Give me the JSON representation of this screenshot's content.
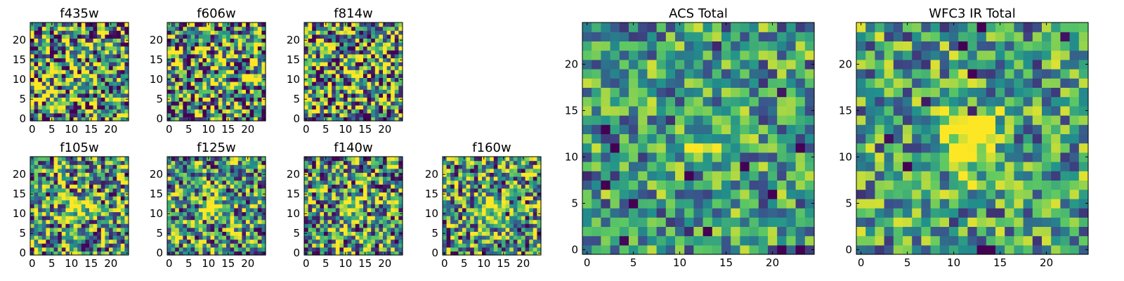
{
  "chart_data": [
    {
      "type": "heatmap",
      "title": "f435w",
      "grid": 25,
      "seed": 11,
      "xticks": [
        0,
        5,
        10,
        15,
        20
      ],
      "yticks": [
        0,
        5,
        10,
        15,
        20
      ],
      "peak": 0.05,
      "contrast": 1.6
    },
    {
      "type": "heatmap",
      "title": "f606w",
      "grid": 25,
      "seed": 23,
      "xticks": [
        0,
        5,
        10,
        15,
        20
      ],
      "yticks": [
        0,
        5,
        10,
        15,
        20
      ],
      "peak": 0.05,
      "contrast": 1.6
    },
    {
      "type": "heatmap",
      "title": "f814w",
      "grid": 25,
      "seed": 37,
      "xticks": [
        0,
        5,
        10,
        15,
        20
      ],
      "yticks": [
        0,
        5,
        10,
        15,
        20
      ],
      "peak": 0.25,
      "contrast": 1.5
    },
    {
      "type": "heatmap",
      "title": "f105w",
      "grid": 25,
      "seed": 41,
      "xticks": [
        0,
        5,
        10,
        15,
        20
      ],
      "yticks": [
        0,
        5,
        10,
        15,
        20
      ],
      "peak": 0.55,
      "contrast": 1.25
    },
    {
      "type": "heatmap",
      "title": "f125w",
      "grid": 25,
      "seed": 53,
      "xticks": [
        0,
        5,
        10,
        15,
        20
      ],
      "yticks": [
        0,
        5,
        10,
        15,
        20
      ],
      "peak": 0.55,
      "contrast": 1.25
    },
    {
      "type": "heatmap",
      "title": "f140w",
      "grid": 25,
      "seed": 67,
      "xticks": [
        0,
        5,
        10,
        15,
        20
      ],
      "yticks": [
        0,
        5,
        10,
        15,
        20
      ],
      "peak": 0.55,
      "contrast": 1.25
    },
    {
      "type": "heatmap",
      "title": "f160w",
      "grid": 25,
      "seed": 79,
      "xticks": [
        0,
        5,
        10,
        15,
        20
      ],
      "yticks": [
        0,
        5,
        10,
        15,
        20
      ],
      "peak": 0.55,
      "contrast": 1.25
    },
    {
      "type": "heatmap",
      "title": "ACS Total",
      "grid": 25,
      "seed": 83,
      "xticks": [
        0,
        5,
        10,
        15,
        20
      ],
      "yticks": [
        0,
        5,
        10,
        15,
        20
      ],
      "peak": 0.15,
      "contrast": 0.85
    },
    {
      "type": "heatmap",
      "title": "WFC3 IR Total",
      "grid": 25,
      "seed": 97,
      "xticks": [
        0,
        5,
        10,
        15,
        20
      ],
      "yticks": [
        0,
        5,
        10,
        15,
        20
      ],
      "peak": 0.8,
      "contrast": 0.9
    }
  ],
  "colormap": [
    "#440154",
    "#3b528b",
    "#21918c",
    "#5ec962",
    "#fde725"
  ]
}
